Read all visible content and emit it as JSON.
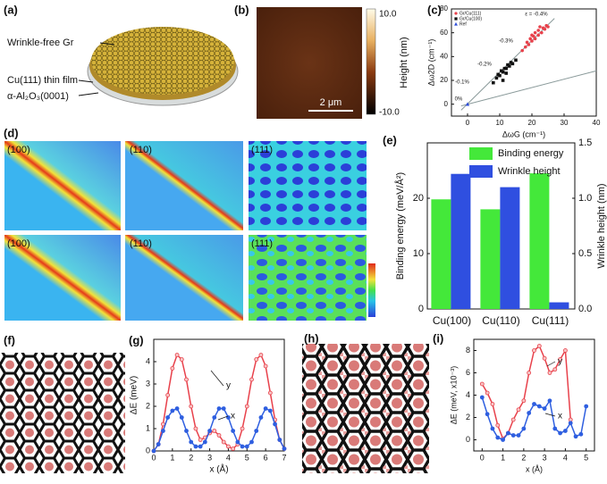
{
  "figure": {
    "panel_labels": [
      "(a)",
      "(b)",
      "(c)",
      "(d)",
      "(e)",
      "(f)",
      "(g)",
      "(h)",
      "(i)"
    ],
    "a_labels": [
      "Wrinkle-free Gr",
      "Cu(111) thin film",
      "α-Al₂O₃(0001)"
    ],
    "b_colorbar_ticks": [
      "10.0",
      "-10.0"
    ],
    "b_colorbar_title": "Height (nm)",
    "b_scale_bar": "2 μm",
    "d_tile_labels": [
      "(100)",
      "(110)",
      "(111)",
      "(100)",
      "(110)",
      "(111)"
    ]
  },
  "chart_data": [
    {
      "type": "scatter",
      "xlabel": "ΔωG (cm⁻¹)",
      "ylabel": "Δω2D (cm⁻¹)",
      "xlim": [
        -5,
        40
      ],
      "ylim": [
        -10,
        80
      ],
      "xticks": [
        0,
        10,
        20,
        30,
        40
      ],
      "yticks": [
        0,
        20,
        40,
        60,
        80
      ],
      "legend": "upper left",
      "series": [
        {
          "name": "Gr/Cu(111)",
          "color": "#e8414b",
          "marker": "circle",
          "x": [
            17,
            18,
            18.5,
            19,
            19.5,
            20,
            20.5,
            21,
            21,
            22,
            22,
            23,
            23.5,
            24,
            24.5,
            25,
            20,
            22.5
          ],
          "values": [
            45,
            48,
            52,
            50,
            55,
            53,
            57,
            55,
            60,
            58,
            62,
            60,
            64,
            63,
            66,
            65,
            58,
            65
          ]
        },
        {
          "name": "Gr/Cu(100)",
          "color": "#111111",
          "marker": "square",
          "x": [
            8,
            9,
            9.5,
            10,
            10.5,
            11,
            11.5,
            12,
            12.5,
            13,
            13.5,
            14,
            15,
            11,
            12
          ],
          "values": [
            18,
            22,
            25,
            24,
            28,
            27,
            30,
            30,
            33,
            32,
            35,
            34,
            37,
            20,
            26
          ]
        },
        {
          "name": "Ref",
          "color": "#2b4bd8",
          "marker": "triangle",
          "x": [
            0
          ],
          "values": [
            0
          ]
        }
      ],
      "reference_lines": [
        {
          "color": "#8a9a9a",
          "x": [
            -2,
            27
          ],
          "values": [
            -5,
            72
          ]
        },
        {
          "color": "#8a9a9a",
          "x": [
            -2,
            40
          ],
          "values": [
            -1.5,
            28
          ]
        }
      ],
      "annotations": [
        "ε = -0.4%",
        "-0.3%",
        "-0.2%",
        "-0.1%",
        "0%"
      ]
    },
    {
      "type": "bar",
      "categories": [
        "Cu(100)",
        "Cu(110)",
        "Cu(111)"
      ],
      "ylabel": "Binding energy (meV/Å²)",
      "y2label": "Wrinkle height (nm)",
      "ylim": [
        0,
        30
      ],
      "yticks": [
        0,
        10,
        20
      ],
      "y2lim": [
        0,
        1.5
      ],
      "y2ticks": [
        {
          "value": 0,
          "label": "0.0"
        },
        {
          "value": 0.5,
          "label": "0.5"
        },
        {
          "value": 1,
          "label": "1.0"
        },
        {
          "value": 1.5,
          "label": "1.5"
        }
      ],
      "legend": "upper right",
      "series": [
        {
          "name": "Binding energy",
          "color": "#44e83a",
          "values": [
            19.8,
            18.0,
            24.5
          ]
        },
        {
          "name": "Wrinkle height",
          "color": "#2f4fe0",
          "axis": "y2",
          "values": [
            1.22,
            1.1,
            0.06
          ]
        }
      ]
    },
    {
      "type": "line",
      "xlabel": "x (Å)",
      "ylabel": "ΔE (meV)",
      "xlim": [
        0,
        7
      ],
      "ylim": [
        0,
        5
      ],
      "xticks": [
        0,
        1,
        2,
        3,
        4,
        5,
        6,
        7
      ],
      "yticks": [
        0,
        1,
        2,
        3,
        4
      ],
      "x": [
        0,
        0.25,
        0.5,
        0.75,
        1,
        1.25,
        1.5,
        1.75,
        2,
        2.25,
        2.5,
        2.75,
        3,
        3.25,
        3.5,
        3.75,
        4,
        4.25,
        4.5,
        4.75,
        5,
        5.25,
        5.5,
        5.75,
        6,
        6.25,
        6.5,
        6.75,
        7
      ],
      "series": [
        {
          "name": "y",
          "color": "#e8414b",
          "values": [
            0,
            0.3,
            1.2,
            2.5,
            3.7,
            4.3,
            4.1,
            3.2,
            2.0,
            1.0,
            0.5,
            0.6,
            0.8,
            0.9,
            0.7,
            0.4,
            0.2,
            0.1,
            0.3,
            1.0,
            2.0,
            3.2,
            4.1,
            4.3,
            3.8,
            2.6,
            1.4,
            0.5,
            0.1
          ]
        },
        {
          "name": "x",
          "color": "#2f5fe0",
          "values": [
            0,
            0.3,
            0.9,
            1.5,
            1.8,
            1.9,
            1.5,
            0.9,
            0.4,
            0.2,
            0.2,
            0.4,
            0.9,
            1.5,
            1.9,
            1.9,
            1.5,
            0.9,
            0.4,
            0.2,
            0.2,
            0.4,
            0.9,
            1.5,
            1.9,
            1.8,
            1.2,
            0.5,
            0.1
          ]
        }
      ]
    },
    {
      "type": "line",
      "xlabel": "x (Å)",
      "ylabel": "ΔE (meV, x10⁻³)",
      "xlim": [
        -0.4,
        5.4
      ],
      "ylim": [
        -1,
        9
      ],
      "xticks": [
        0,
        1,
        2,
        3,
        4,
        5
      ],
      "yticks": [
        0,
        2,
        4,
        6,
        8
      ],
      "series": [
        {
          "name": "y",
          "color": "#e8414b",
          "x": [
            0,
            0.25,
            0.5,
            0.75,
            1,
            1.25,
            1.5,
            1.75,
            2,
            2.25,
            2.5,
            2.75,
            3,
            3.25,
            3.5,
            3.75,
            4,
            4.25
          ],
          "values": [
            5.0,
            4.2,
            3.2,
            1.3,
            0.1,
            0.6,
            1.8,
            2.7,
            3.5,
            6.0,
            8.0,
            8.4,
            7.3,
            6.0,
            6.3,
            7.2,
            8.0,
            1.8
          ]
        },
        {
          "name": "x",
          "color": "#2f5fe0",
          "x": [
            0,
            0.25,
            0.5,
            0.75,
            1,
            1.25,
            1.5,
            1.75,
            2,
            2.25,
            2.5,
            2.75,
            3,
            3.25,
            3.5,
            3.75,
            4,
            4.25,
            4.5,
            4.75,
            5
          ],
          "values": [
            3.8,
            2.3,
            1.0,
            0.2,
            0,
            0.6,
            0.4,
            0.4,
            1.0,
            2.4,
            3.2,
            3.0,
            2.8,
            3.5,
            1.0,
            0.6,
            0.8,
            1.5,
            0.3,
            0.5,
            3.0
          ]
        }
      ]
    }
  ]
}
